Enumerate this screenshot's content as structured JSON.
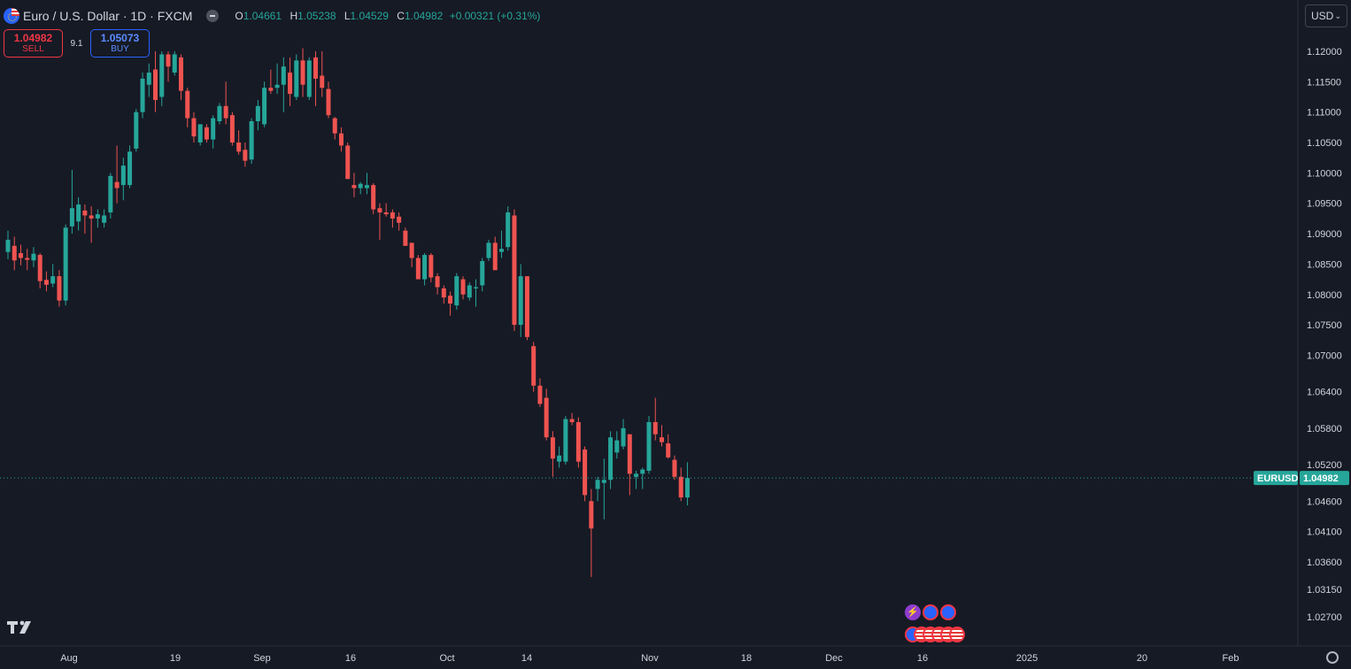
{
  "header": {
    "symbol_title": "Euro / U.S. Dollar · 1D · FXCM",
    "ohlc": {
      "o_label": "O",
      "o": "1.04661",
      "h_label": "H",
      "h": "1.05238",
      "l_label": "L",
      "l": "1.04529",
      "c_label": "C",
      "c": "1.04982",
      "change": "+0.00321 (+0.31%)"
    }
  },
  "currency_selector": {
    "label": "USD",
    "icon": "chevron-down-icon"
  },
  "trade": {
    "sell_price": "1.04982",
    "sell_label": "SELL",
    "spread": "9.1",
    "buy_price": "1.05073",
    "buy_label": "BUY"
  },
  "price_tag": {
    "symbol": "EURUSD",
    "price": "1.04982"
  },
  "colors": {
    "background": "#161a25",
    "up": "#26a69a",
    "down": "#ef5350",
    "grid": "#2a2e39",
    "text": "#d1d4dc"
  },
  "chart_data": {
    "type": "candlestick",
    "symbol": "EURUSD",
    "interval": "1D",
    "yaxis_ticks": [
      "1.12000",
      "1.11500",
      "1.11000",
      "1.10500",
      "1.10000",
      "1.09500",
      "1.09000",
      "1.08500",
      "1.08000",
      "1.07500",
      "1.07000",
      "1.06400",
      "1.05800",
      "1.05200",
      "1.04600",
      "1.04100",
      "1.03600",
      "1.03150",
      "1.02700"
    ],
    "ylim": [
      1.025,
      1.125
    ],
    "xaxis_ticks": [
      "Aug",
      "19",
      "Sep",
      "16",
      "Oct",
      "14",
      "Nov",
      "18",
      "Dec",
      "16",
      "2025",
      "20",
      "Feb"
    ],
    "current_price": 1.04982,
    "candles": [
      {
        "o": 1.087,
        "h": 1.0905,
        "l": 1.0858,
        "c": 1.089
      },
      {
        "o": 1.088,
        "h": 1.0895,
        "l": 1.084,
        "c": 1.0856
      },
      {
        "o": 1.0868,
        "h": 1.0882,
        "l": 1.0848,
        "c": 1.086
      },
      {
        "o": 1.086,
        "h": 1.0875,
        "l": 1.084,
        "c": 1.0857
      },
      {
        "o": 1.0856,
        "h": 1.0878,
        "l": 1.0845,
        "c": 1.0867
      },
      {
        "o": 1.0865,
        "h": 1.0868,
        "l": 1.081,
        "c": 1.0822
      },
      {
        "o": 1.0824,
        "h": 1.0838,
        "l": 1.0805,
        "c": 1.0816
      },
      {
        "o": 1.0818,
        "h": 1.085,
        "l": 1.0812,
        "c": 1.083
      },
      {
        "o": 1.083,
        "h": 1.084,
        "l": 1.078,
        "c": 1.079
      },
      {
        "o": 1.079,
        "h": 1.0915,
        "l": 1.0782,
        "c": 1.091
      },
      {
        "o": 1.0912,
        "h": 1.1005,
        "l": 1.09,
        "c": 1.0942
      },
      {
        "o": 1.092,
        "h": 1.096,
        "l": 1.0905,
        "c": 1.0948
      },
      {
        "o": 1.0938,
        "h": 1.0948,
        "l": 1.09,
        "c": 1.093
      },
      {
        "o": 1.093,
        "h": 1.0945,
        "l": 1.0885,
        "c": 1.0925
      },
      {
        "o": 1.0925,
        "h": 1.094,
        "l": 1.091,
        "c": 1.0932
      },
      {
        "o": 1.0918,
        "h": 1.094,
        "l": 1.091,
        "c": 1.093
      },
      {
        "o": 1.0935,
        "h": 1.1,
        "l": 1.0925,
        "c": 1.0995
      },
      {
        "o": 1.0985,
        "h": 1.1045,
        "l": 1.095,
        "c": 1.0975
      },
      {
        "o": 1.098,
        "h": 1.1025,
        "l": 1.0955,
        "c": 1.1012
      },
      {
        "o": 1.098,
        "h": 1.1045,
        "l": 1.0975,
        "c": 1.1035
      },
      {
        "o": 1.104,
        "h": 1.1105,
        "l": 1.1035,
        "c": 1.11
      },
      {
        "o": 1.11,
        "h": 1.1165,
        "l": 1.109,
        "c": 1.1155
      },
      {
        "o": 1.1145,
        "h": 1.118,
        "l": 1.1125,
        "c": 1.1165
      },
      {
        "o": 1.117,
        "h": 1.12,
        "l": 1.11,
        "c": 1.112
      },
      {
        "o": 1.1125,
        "h": 1.12,
        "l": 1.111,
        "c": 1.1195
      },
      {
        "o": 1.1195,
        "h": 1.12,
        "l": 1.115,
        "c": 1.1175
      },
      {
        "o": 1.1165,
        "h": 1.12,
        "l": 1.116,
        "c": 1.1195
      },
      {
        "o": 1.119,
        "h": 1.1195,
        "l": 1.112,
        "c": 1.1135
      },
      {
        "o": 1.1135,
        "h": 1.114,
        "l": 1.1075,
        "c": 1.109
      },
      {
        "o": 1.109,
        "h": 1.11,
        "l": 1.105,
        "c": 1.106
      },
      {
        "o": 1.105,
        "h": 1.108,
        "l": 1.1045,
        "c": 1.108
      },
      {
        "o": 1.1075,
        "h": 1.108,
        "l": 1.105,
        "c": 1.1055
      },
      {
        "o": 1.1055,
        "h": 1.1095,
        "l": 1.104,
        "c": 1.109
      },
      {
        "o": 1.1085,
        "h": 1.1115,
        "l": 1.108,
        "c": 1.111
      },
      {
        "o": 1.111,
        "h": 1.115,
        "l": 1.108,
        "c": 1.109
      },
      {
        "o": 1.1095,
        "h": 1.11,
        "l": 1.1045,
        "c": 1.105
      },
      {
        "o": 1.105,
        "h": 1.107,
        "l": 1.103,
        "c": 1.1035
      },
      {
        "o": 1.1038,
        "h": 1.105,
        "l": 1.101,
        "c": 1.102
      },
      {
        "o": 1.1022,
        "h": 1.109,
        "l": 1.1015,
        "c": 1.1085
      },
      {
        "o": 1.1085,
        "h": 1.112,
        "l": 1.107,
        "c": 1.111
      },
      {
        "o": 1.108,
        "h": 1.115,
        "l": 1.1075,
        "c": 1.114
      },
      {
        "o": 1.114,
        "h": 1.117,
        "l": 1.113,
        "c": 1.1135
      },
      {
        "o": 1.114,
        "h": 1.118,
        "l": 1.113,
        "c": 1.1145
      },
      {
        "o": 1.1145,
        "h": 1.119,
        "l": 1.11,
        "c": 1.1175
      },
      {
        "o": 1.1165,
        "h": 1.119,
        "l": 1.111,
        "c": 1.113
      },
      {
        "o": 1.1125,
        "h": 1.1195,
        "l": 1.112,
        "c": 1.1185
      },
      {
        "o": 1.1185,
        "h": 1.1205,
        "l": 1.1125,
        "c": 1.1145
      },
      {
        "o": 1.1125,
        "h": 1.119,
        "l": 1.112,
        "c": 1.1185
      },
      {
        "o": 1.119,
        "h": 1.12,
        "l": 1.111,
        "c": 1.1155
      },
      {
        "o": 1.116,
        "h": 1.12,
        "l": 1.1125,
        "c": 1.114
      },
      {
        "o": 1.1138,
        "h": 1.115,
        "l": 1.109,
        "c": 1.1095
      },
      {
        "o": 1.109,
        "h": 1.1092,
        "l": 1.1055,
        "c": 1.1065
      },
      {
        "o": 1.1065,
        "h": 1.1075,
        "l": 1.1035,
        "c": 1.1045
      },
      {
        "o": 1.1045,
        "h": 1.105,
        "l": 1.099,
        "c": 1.099
      },
      {
        "o": 1.098,
        "h": 1.1,
        "l": 1.096,
        "c": 1.0975
      },
      {
        "o": 1.0975,
        "h": 1.0985,
        "l": 1.0965,
        "c": 1.0982
      },
      {
        "o": 1.0975,
        "h": 1.1,
        "l": 1.0965,
        "c": 1.098
      },
      {
        "o": 1.098,
        "h": 1.0983,
        "l": 1.0932,
        "c": 1.094
      },
      {
        "o": 1.0942,
        "h": 1.095,
        "l": 1.089,
        "c": 1.0935
      },
      {
        "o": 1.0935,
        "h": 1.095,
        "l": 1.0928,
        "c": 1.0932
      },
      {
        "o": 1.0935,
        "h": 1.094,
        "l": 1.091,
        "c": 1.0925
      },
      {
        "o": 1.0928,
        "h": 1.0935,
        "l": 1.0905,
        "c": 1.0918
      },
      {
        "o": 1.0905,
        "h": 1.091,
        "l": 1.088,
        "c": 1.088
      },
      {
        "o": 1.0885,
        "h": 1.0885,
        "l": 1.0845,
        "c": 1.086
      },
      {
        "o": 1.086,
        "h": 1.0865,
        "l": 1.083,
        "c": 1.0825
      },
      {
        "o": 1.0825,
        "h": 1.0868,
        "l": 1.0815,
        "c": 1.0865
      },
      {
        "o": 1.0865,
        "h": 1.0868,
        "l": 1.082,
        "c": 1.0828
      },
      {
        "o": 1.083,
        "h": 1.0835,
        "l": 1.08,
        "c": 1.0812
      },
      {
        "o": 1.081,
        "h": 1.0815,
        "l": 1.0785,
        "c": 1.0795
      },
      {
        "o": 1.0798,
        "h": 1.0805,
        "l": 1.0765,
        "c": 1.0785
      },
      {
        "o": 1.0782,
        "h": 1.0835,
        "l": 1.0775,
        "c": 1.083
      },
      {
        "o": 1.0825,
        "h": 1.083,
        "l": 1.0792,
        "c": 1.08
      },
      {
        "o": 1.0795,
        "h": 1.082,
        "l": 1.079,
        "c": 1.0815
      },
      {
        "o": 1.081,
        "h": 1.0825,
        "l": 1.078,
        "c": 1.0812
      },
      {
        "o": 1.0815,
        "h": 1.086,
        "l": 1.0805,
        "c": 1.0855
      },
      {
        "o": 1.086,
        "h": 1.089,
        "l": 1.0855,
        "c": 1.0885
      },
      {
        "o": 1.0885,
        "h": 1.0895,
        "l": 1.084,
        "c": 1.084
      },
      {
        "o": 1.087,
        "h": 1.0905,
        "l": 1.086,
        "c": 1.0875
      },
      {
        "o": 1.0878,
        "h": 1.0945,
        "l": 1.0872,
        "c": 1.0935
      },
      {
        "o": 1.093,
        "h": 1.094,
        "l": 1.074,
        "c": 1.075
      },
      {
        "o": 1.075,
        "h": 1.085,
        "l": 1.073,
        "c": 1.083
      },
      {
        "o": 1.083,
        "h": 1.083,
        "l": 1.0725,
        "c": 1.073
      },
      {
        "o": 1.0715,
        "h": 1.0722,
        "l": 1.064,
        "c": 1.065
      },
      {
        "o": 1.065,
        "h": 1.0662,
        "l": 1.0615,
        "c": 1.062
      },
      {
        "o": 1.063,
        "h": 1.0645,
        "l": 1.056,
        "c": 1.0565
      },
      {
        "o": 1.0565,
        "h": 1.0575,
        "l": 1.05,
        "c": 1.053
      },
      {
        "o": 1.0525,
        "h": 1.055,
        "l": 1.0515,
        "c": 1.0535
      },
      {
        "o": 1.0525,
        "h": 1.06,
        "l": 1.052,
        "c": 1.0595
      },
      {
        "o": 1.0595,
        "h": 1.0605,
        "l": 1.0585,
        "c": 1.059
      },
      {
        "o": 1.059,
        "h": 1.0598,
        "l": 1.0515,
        "c": 1.0525
      },
      {
        "o": 1.0545,
        "h": 1.055,
        "l": 1.046,
        "c": 1.047
      },
      {
        "o": 1.046,
        "h": 1.048,
        "l": 1.0335,
        "c": 1.0415
      },
      {
        "o": 1.048,
        "h": 1.05,
        "l": 1.046,
        "c": 1.0495
      },
      {
        "o": 1.049,
        "h": 1.053,
        "l": 1.043,
        "c": 1.0495
      },
      {
        "o": 1.0495,
        "h": 1.0575,
        "l": 1.048,
        "c": 1.0565
      },
      {
        "o": 1.054,
        "h": 1.0575,
        "l": 1.053,
        "c": 1.056
      },
      {
        "o": 1.055,
        "h": 1.0595,
        "l": 1.0545,
        "c": 1.058
      },
      {
        "o": 1.057,
        "h": 1.057,
        "l": 1.047,
        "c": 1.0505
      },
      {
        "o": 1.05,
        "h": 1.051,
        "l": 1.048,
        "c": 1.0505
      },
      {
        "o": 1.0505,
        "h": 1.0515,
        "l": 1.048,
        "c": 1.0512
      },
      {
        "o": 1.051,
        "h": 1.06,
        "l": 1.0505,
        "c": 1.059
      },
      {
        "o": 1.059,
        "h": 1.063,
        "l": 1.056,
        "c": 1.057
      },
      {
        "o": 1.0565,
        "h": 1.0585,
        "l": 1.055,
        "c": 1.0557
      },
      {
        "o": 1.0555,
        "h": 1.057,
        "l": 1.053,
        "c": 1.0532
      },
      {
        "o": 1.0528,
        "h": 1.0535,
        "l": 1.0495,
        "c": 1.05
      },
      {
        "o": 1.05,
        "h": 1.0515,
        "l": 1.046,
        "c": 1.0466
      },
      {
        "o": 1.0466,
        "h": 1.0524,
        "l": 1.0453,
        "c": 1.0498
      }
    ]
  }
}
